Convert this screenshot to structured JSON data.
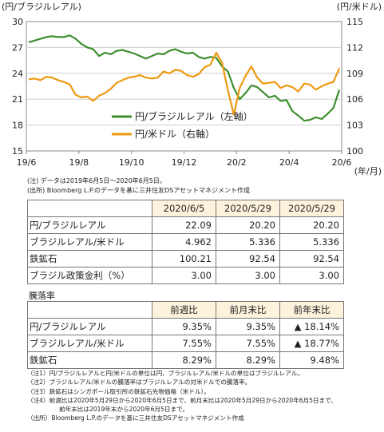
{
  "chart_data": {
    "type": "line",
    "left_axis_title": "(円/ブラジルレアル)",
    "right_axis_title": "(円/米ドル)",
    "x_unit": "(年/月)",
    "x_ticks": [
      "19/6",
      "19/8",
      "19/10",
      "19/12",
      "20/2",
      "20/4",
      "20/6"
    ],
    "ylim_left": [
      15,
      30
    ],
    "ylim_right": [
      100,
      115
    ],
    "y_ticks_left": [
      "30",
      "27",
      "24",
      "21",
      "18",
      "15"
    ],
    "y_ticks_right": [
      "115",
      "112",
      "109",
      "106",
      "103",
      "100"
    ],
    "series": [
      {
        "name": "円/ブラジルレアル（左軸）",
        "axis": "left",
        "color": "#3d8f2e",
        "x": [
          0,
          1,
          2,
          3,
          4,
          5,
          6,
          7,
          8,
          9,
          10,
          11,
          12,
          13,
          14,
          15,
          16,
          17,
          18,
          19,
          20,
          21,
          22,
          23,
          24,
          25,
          26,
          27,
          28,
          29,
          30,
          31,
          32,
          33,
          34,
          35,
          36,
          37,
          38,
          39,
          40,
          41,
          42,
          43,
          44,
          45,
          46,
          47,
          48,
          49,
          50,
          51,
          52,
          53
        ],
        "y": [
          27.6,
          27.8,
          28.0,
          28.2,
          28.3,
          28.2,
          28.2,
          28.4,
          28.0,
          27.4,
          27.0,
          26.8,
          26.0,
          26.4,
          26.2,
          26.6,
          26.7,
          26.5,
          26.3,
          26.0,
          25.7,
          26.0,
          26.3,
          26.2,
          26.6,
          26.8,
          26.5,
          26.3,
          26.4,
          25.9,
          25.7,
          25.9,
          25.8,
          24.8,
          24.2,
          22.3,
          21.0,
          21.7,
          22.6,
          22.4,
          21.8,
          21.2,
          21.4,
          20.8,
          20.9,
          19.6,
          19.1,
          18.5,
          18.6,
          18.9,
          18.7,
          19.3,
          20.0,
          22.09
        ]
      },
      {
        "name": "円/米ドル（右軸）",
        "axis": "right",
        "color": "#ee9a10",
        "x": [
          0,
          1,
          2,
          3,
          4,
          5,
          6,
          7,
          8,
          9,
          10,
          11,
          12,
          13,
          14,
          15,
          16,
          17,
          18,
          19,
          20,
          21,
          22,
          23,
          24,
          25,
          26,
          27,
          28,
          29,
          30,
          31,
          32,
          33,
          34,
          35,
          36,
          37,
          38,
          39,
          40,
          41,
          42,
          43,
          44,
          45,
          46,
          47,
          48,
          49,
          50,
          51,
          52,
          53
        ],
        "y": [
          108.3,
          108.4,
          108.2,
          108.6,
          108.5,
          108.2,
          108.0,
          107.7,
          106.5,
          106.2,
          106.3,
          105.8,
          106.4,
          106.7,
          107.2,
          107.9,
          108.2,
          108.5,
          108.6,
          108.8,
          108.5,
          108.4,
          108.5,
          109.2,
          109.0,
          109.4,
          109.3,
          108.8,
          108.6,
          108.9,
          109.7,
          110.0,
          111.4,
          110.2,
          107.0,
          104.2,
          107.3,
          108.7,
          109.8,
          108.5,
          107.8,
          107.9,
          108.0,
          107.3,
          107.6,
          107.4,
          106.9,
          107.8,
          107.7,
          107.1,
          107.5,
          107.8,
          108.0,
          109.6
        ]
      }
    ]
  },
  "chart_note": "(注) データは2019年6月5日〜2020年6月5日。",
  "chart_source": "(出所) Bloomberg L.P.のデータを基に三井住友DSアセットマネジメント作成",
  "price_table": {
    "headers": [
      "2020/6/5",
      "2020/5/29",
      "2020/5/29"
    ],
    "rows": [
      {
        "label": "円/ブラジルレアル",
        "values": [
          "22.09",
          "20.20",
          "20.20"
        ]
      },
      {
        "label": "ブラジルレアル/米ドル",
        "values": [
          "4.962",
          "5.336",
          "5.336"
        ]
      },
      {
        "label": "鉄鉱石",
        "values": [
          "100.21",
          "92.54",
          "92.54"
        ]
      },
      {
        "label": "ブラジル政策金利（%）",
        "values": [
          "3.00",
          "3.00",
          "3.00"
        ]
      }
    ]
  },
  "perf_title": "騰落率",
  "perf_table": {
    "headers": [
      "前週比",
      "前月末比",
      "前年末比"
    ],
    "rows": [
      {
        "label": "円/ブラジルレアル",
        "values": [
          "9.35%",
          "9.35%",
          "▲ 18.14%"
        ]
      },
      {
        "label": "ブラジルレアル/米ドル",
        "values": [
          "7.55%",
          "7.55%",
          "▲ 18.77%"
        ]
      },
      {
        "label": "鉄鉱石",
        "values": [
          "8.29%",
          "8.29%",
          "9.48%"
        ]
      }
    ]
  },
  "footnotes": {
    "n1": "（注1）円/ブラジルレアルと円/米ドルの単位は円、ブラジルレアル/米ドルの単位はブラジルレアル。",
    "n2": "（注2）ブラジルレアル/米ドルの騰落率はブラジルレアルの対米ドルでの騰落率。",
    "n3": "（注3）鉄鉱石はシンガポール取引所の鉄鉱石先物価格（米ドル）。",
    "n4a": "（注4）前週比は2020年5月29日から2020年6月5日まで、前月末比は2020年5月29日から2020年6月5日まで、",
    "n4b": "前年末比は2019年末から2020年6月5日まで。",
    "source": "（出所）Bloomberg L.P.のデータを基に三井住友DSアセットマネジメント作成"
  }
}
